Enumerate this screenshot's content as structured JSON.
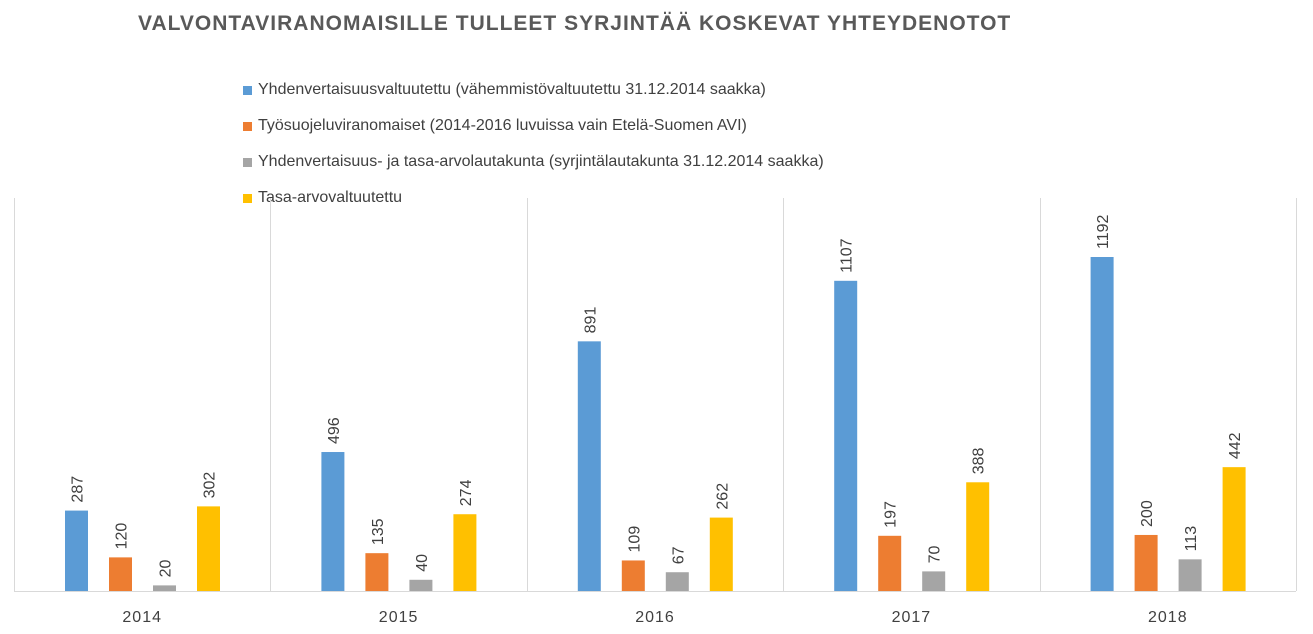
{
  "chart_data": {
    "type": "bar",
    "title": "VALVONTAVIRANOMAISILLE TULLEET SYRJINTÄÄ KOSKEVAT YHTEYDENOTOT",
    "xlabel": "",
    "ylabel": "",
    "categories": [
      "2014",
      "2015",
      "2016",
      "2017",
      "2018"
    ],
    "series": [
      {
        "name": "Yhdenvertaisuusvaltuutettu (vähemmistövaltuutettu 31.12.2014 saakka)",
        "color": "#5b9bd5",
        "values": [
          287,
          496,
          891,
          1107,
          1192
        ]
      },
      {
        "name": "Työsuojeluviranomaiset (2014-2016 luvuissa vain Etelä-Suomen AVI)",
        "color": "#ed7d31",
        "values": [
          120,
          135,
          109,
          197,
          200
        ]
      },
      {
        "name": "Yhdenvertaisuus- ja tasa-arvolautakunta (syrjintälautakunta 31.12.2014 saakka)",
        "color": "#a5a5a5",
        "values": [
          20,
          40,
          67,
          70,
          113
        ]
      },
      {
        "name": "Tasa-arvovaltuutettu",
        "color": "#ffc000",
        "values": [
          302,
          274,
          262,
          388,
          442
        ]
      }
    ],
    "legend_position": "top",
    "grid": false,
    "category_dividers": true,
    "data_labels": "rotated, above bars"
  }
}
